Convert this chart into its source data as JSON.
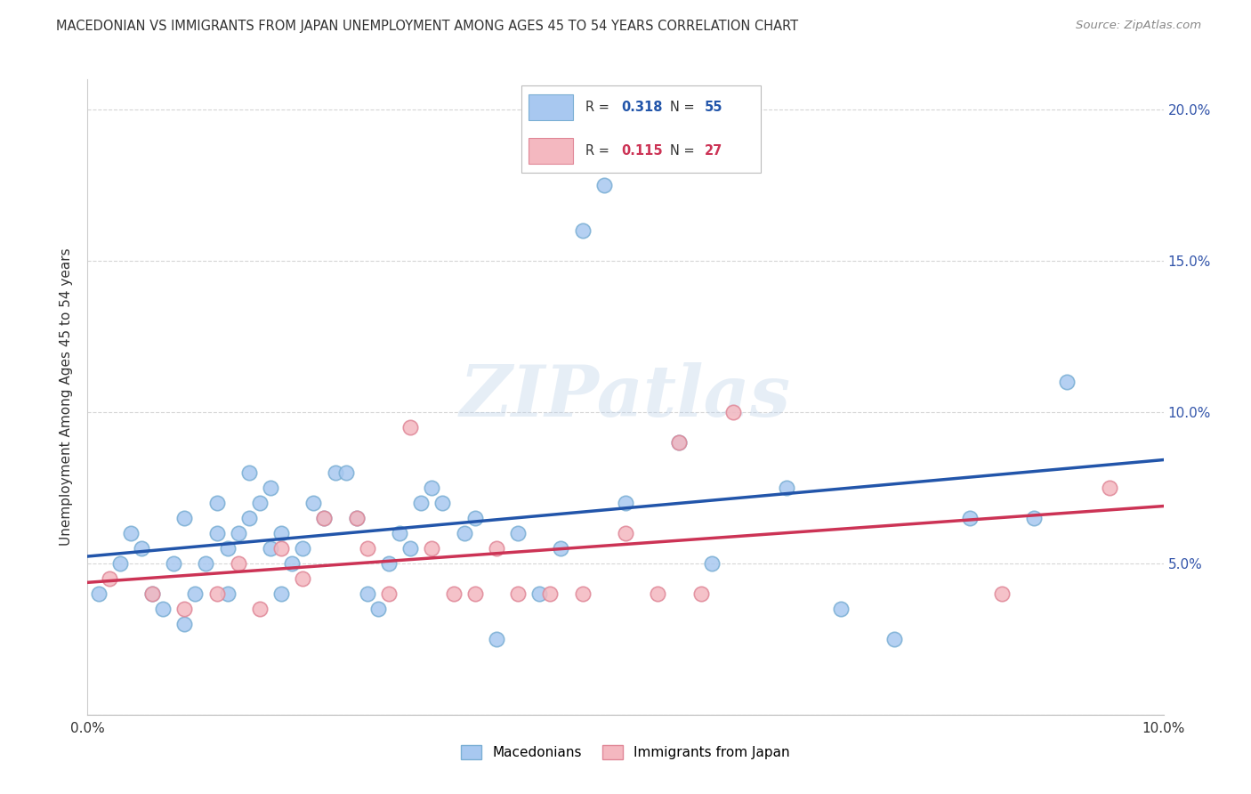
{
  "title": "MACEDONIAN VS IMMIGRANTS FROM JAPAN UNEMPLOYMENT AMONG AGES 45 TO 54 YEARS CORRELATION CHART",
  "source": "Source: ZipAtlas.com",
  "ylabel": "Unemployment Among Ages 45 to 54 years",
  "xlim": [
    0.0,
    0.1
  ],
  "ylim": [
    0.0,
    0.21
  ],
  "macedonians_R": 0.318,
  "macedonians_N": 55,
  "japan_R": 0.115,
  "japan_N": 27,
  "blue_color": "#a8c8f0",
  "blue_edge_color": "#7bafd4",
  "pink_color": "#f4b8c0",
  "pink_edge_color": "#e08898",
  "blue_line_color": "#2255aa",
  "pink_line_color": "#cc3355",
  "macedonians_x": [
    0.001,
    0.003,
    0.004,
    0.005,
    0.006,
    0.007,
    0.008,
    0.009,
    0.009,
    0.01,
    0.011,
    0.012,
    0.012,
    0.013,
    0.013,
    0.014,
    0.015,
    0.015,
    0.016,
    0.017,
    0.017,
    0.018,
    0.018,
    0.019,
    0.02,
    0.021,
    0.022,
    0.023,
    0.024,
    0.025,
    0.026,
    0.027,
    0.028,
    0.029,
    0.03,
    0.031,
    0.032,
    0.033,
    0.035,
    0.036,
    0.038,
    0.04,
    0.042,
    0.044,
    0.046,
    0.048,
    0.05,
    0.055,
    0.058,
    0.065,
    0.07,
    0.075,
    0.082,
    0.088,
    0.091
  ],
  "macedonians_y": [
    0.04,
    0.05,
    0.06,
    0.055,
    0.04,
    0.035,
    0.05,
    0.03,
    0.065,
    0.04,
    0.05,
    0.06,
    0.07,
    0.055,
    0.04,
    0.06,
    0.065,
    0.08,
    0.07,
    0.055,
    0.075,
    0.06,
    0.04,
    0.05,
    0.055,
    0.07,
    0.065,
    0.08,
    0.08,
    0.065,
    0.04,
    0.035,
    0.05,
    0.06,
    0.055,
    0.07,
    0.075,
    0.07,
    0.06,
    0.065,
    0.025,
    0.06,
    0.04,
    0.055,
    0.16,
    0.175,
    0.07,
    0.09,
    0.05,
    0.075,
    0.035,
    0.025,
    0.065,
    0.065,
    0.11
  ],
  "japan_x": [
    0.002,
    0.006,
    0.009,
    0.012,
    0.014,
    0.016,
    0.018,
    0.02,
    0.022,
    0.025,
    0.026,
    0.028,
    0.03,
    0.032,
    0.034,
    0.036,
    0.038,
    0.04,
    0.043,
    0.046,
    0.05,
    0.053,
    0.055,
    0.057,
    0.06,
    0.085,
    0.095
  ],
  "japan_y": [
    0.045,
    0.04,
    0.035,
    0.04,
    0.05,
    0.035,
    0.055,
    0.045,
    0.065,
    0.065,
    0.055,
    0.04,
    0.095,
    0.055,
    0.04,
    0.04,
    0.055,
    0.04,
    0.04,
    0.04,
    0.06,
    0.04,
    0.09,
    0.04,
    0.1,
    0.04,
    0.075
  ],
  "background_color": "#ffffff",
  "grid_color": "#cccccc",
  "watermark": "ZIPatlas"
}
